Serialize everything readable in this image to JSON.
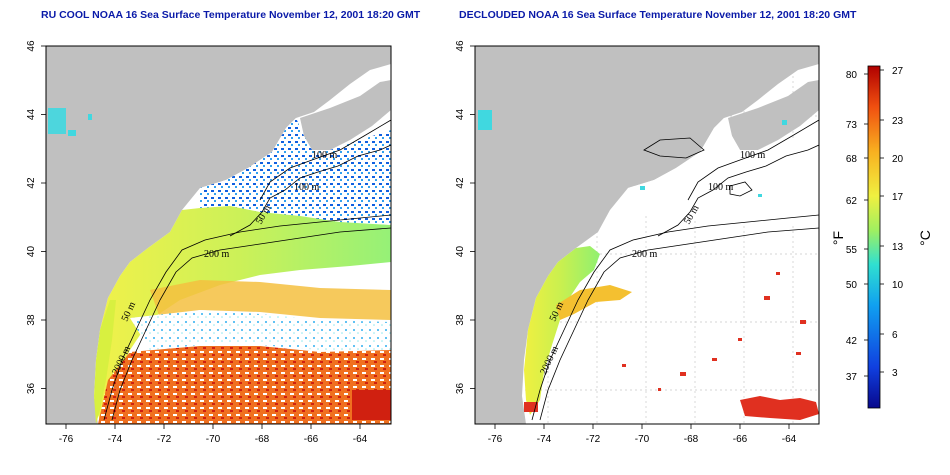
{
  "titles": {
    "left": "RU COOL NOAA 16 Sea Surface Temperature November 12, 2001 18:20 GMT",
    "right": "DECLOUDED NOAA 16 Sea Surface Temperature November 12, 2001 18:20 GMT"
  },
  "axes": {
    "lon_ticks": [
      "-76",
      "-74",
      "-72",
      "-70",
      "-68",
      "-66",
      "-64"
    ],
    "lat_ticks": [
      "46",
      "44",
      "42",
      "40",
      "38",
      "36"
    ]
  },
  "contours": {
    "left": [
      "100 m",
      "100 m",
      "50 m",
      "200 m",
      "50 m",
      "2000 m"
    ],
    "right": [
      "100 m",
      "100 m",
      "50 m",
      "200 m",
      "50 m",
      "2000 m"
    ]
  },
  "colorbar": {
    "fahrenheit_label": "°F",
    "celsius_label": "°C",
    "fahrenheit_ticks": [
      "80",
      "73",
      "68",
      "62",
      "55",
      "50",
      "42",
      "37"
    ],
    "celsius_ticks": [
      "27",
      "23",
      "20",
      "17",
      "13",
      "10",
      "6",
      "3"
    ],
    "colors": [
      "#08088c",
      "#1040e0",
      "#10a0f0",
      "#30e0d0",
      "#a0f060",
      "#f0f040",
      "#f8b020",
      "#f05010",
      "#b00000"
    ]
  },
  "colors": {
    "land": "#c0c0c0",
    "title": "#0a1aa8"
  }
}
